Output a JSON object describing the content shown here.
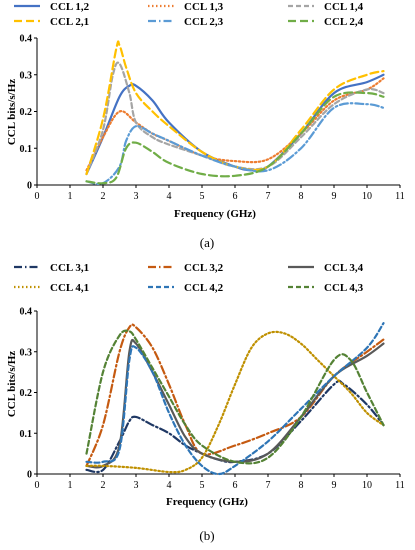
{
  "chart_data": [
    {
      "type": "line",
      "panel_label": "(a)",
      "xlabel": "Frequency (GHz)",
      "ylabel": "CCL bits/s/Hz",
      "xlim": [
        0,
        11
      ],
      "ylim": [
        0,
        0.4
      ],
      "x_ticks": [
        0,
        1,
        2,
        3,
        4,
        5,
        6,
        7,
        8,
        9,
        10,
        11
      ],
      "y_ticks": [
        0,
        0.1,
        0.2,
        0.3,
        0.4
      ],
      "y_tick_labels": [
        "0",
        "0.1",
        "0.2",
        "0.3",
        "0.4"
      ],
      "grid": false,
      "legend_position": "top",
      "series": [
        {
          "name": "CCL 1,2",
          "color": "#4472c4",
          "dash": "solid",
          "x": [
            1.5,
            2.0,
            2.5,
            2.8,
            3.0,
            3.5,
            4.0,
            5.0,
            6.0,
            6.5,
            7.0,
            8.0,
            9.0,
            10.0,
            10.5
          ],
          "y": [
            0.03,
            0.13,
            0.24,
            0.27,
            0.27,
            0.23,
            0.17,
            0.09,
            0.05,
            0.04,
            0.05,
            0.14,
            0.25,
            0.28,
            0.3
          ]
        },
        {
          "name": "CCL 1,3",
          "color": "#ed7d31",
          "dash": "dot",
          "x": [
            1.5,
            2.0,
            2.5,
            3.0,
            3.5,
            4.0,
            5.0,
            6.0,
            7.0,
            8.0,
            9.0,
            10.0,
            10.5
          ],
          "y": [
            0.04,
            0.13,
            0.2,
            0.17,
            0.14,
            0.12,
            0.08,
            0.065,
            0.07,
            0.14,
            0.23,
            0.26,
            0.29
          ]
        },
        {
          "name": "CCL 1,4",
          "color": "#a5a5a5",
          "dash": "dash",
          "x": [
            1.5,
            2.0,
            2.3,
            2.5,
            2.8,
            3.0,
            3.5,
            4.0,
            5.0,
            6.0,
            7.0,
            8.0,
            9.0,
            10.0,
            10.5
          ],
          "y": [
            0.03,
            0.15,
            0.3,
            0.33,
            0.25,
            0.17,
            0.13,
            0.11,
            0.08,
            0.05,
            0.05,
            0.13,
            0.22,
            0.26,
            0.25
          ]
        },
        {
          "name": "CCL 2,1",
          "color": "#ffc000",
          "dash": "longdash",
          "x": [
            1.5,
            2.0,
            2.4,
            2.5,
            2.7,
            3.0,
            3.5,
            4.0,
            5.0,
            6.0,
            7.0,
            8.0,
            9.0,
            10.0,
            10.5
          ],
          "y": [
            0.03,
            0.18,
            0.37,
            0.38,
            0.32,
            0.25,
            0.2,
            0.16,
            0.09,
            0.05,
            0.05,
            0.15,
            0.26,
            0.3,
            0.31
          ]
        },
        {
          "name": "CCL 2,3",
          "color": "#5b9bd5",
          "dash": "dashdot",
          "x": [
            1.5,
            2.0,
            2.5,
            2.7,
            3.0,
            3.5,
            4.0,
            5.0,
            6.0,
            7.0,
            8.0,
            9.0,
            10.0,
            10.5
          ],
          "y": [
            0.01,
            0.005,
            0.05,
            0.12,
            0.16,
            0.14,
            0.12,
            0.08,
            0.05,
            0.04,
            0.1,
            0.21,
            0.22,
            0.21
          ]
        },
        {
          "name": "CCL 2,4",
          "color": "#70ad47",
          "dash": "longdash",
          "x": [
            1.5,
            2.0,
            2.4,
            2.7,
            3.0,
            3.5,
            4.0,
            5.0,
            6.0,
            7.0,
            8.0,
            9.0,
            10.0,
            10.5
          ],
          "y": [
            0.01,
            0.005,
            0.02,
            0.1,
            0.115,
            0.09,
            0.06,
            0.03,
            0.025,
            0.05,
            0.14,
            0.24,
            0.25,
            0.24
          ]
        }
      ]
    },
    {
      "type": "line",
      "panel_label": "(b)",
      "xlabel": "Frequency (GHz)",
      "ylabel": "CCL bits/s/Hz",
      "xlim": [
        0,
        11
      ],
      "ylim": [
        0,
        0.4
      ],
      "x_ticks": [
        0,
        1,
        2,
        3,
        4,
        5,
        6,
        7,
        8,
        9,
        10,
        11
      ],
      "y_ticks": [
        0,
        0.1,
        0.2,
        0.3,
        0.4
      ],
      "y_tick_labels": [
        "0",
        "0.1",
        "0.2",
        "0.3",
        "0.4"
      ],
      "grid": false,
      "legend_position": "top",
      "series": [
        {
          "name": "CCL 3,1",
          "color": "#1f3864",
          "dash": "dashdot",
          "x": [
            1.5,
            2.0,
            2.5,
            2.8,
            3.0,
            3.5,
            4.0,
            4.5,
            5.0,
            5.5,
            6.0,
            7.0,
            8.0,
            9.0,
            9.3,
            10.0,
            10.5
          ],
          "y": [
            0.01,
            0.01,
            0.08,
            0.13,
            0.14,
            0.12,
            0.1,
            0.07,
            0.05,
            0.035,
            0.03,
            0.05,
            0.13,
            0.22,
            0.22,
            0.17,
            0.12
          ]
        },
        {
          "name": "CCL 3,2",
          "color": "#c55a11",
          "dash": "dashdot",
          "x": [
            1.5,
            2.0,
            2.5,
            2.8,
            3.0,
            3.5,
            4.0,
            4.5,
            5.0,
            6.0,
            7.0,
            8.0,
            9.0,
            10.0,
            10.5
          ],
          "y": [
            0.02,
            0.12,
            0.3,
            0.36,
            0.36,
            0.31,
            0.22,
            0.12,
            0.05,
            0.07,
            0.1,
            0.14,
            0.24,
            0.3,
            0.33
          ]
        },
        {
          "name": "CCL 3,4",
          "color": "#595959",
          "dash": "solid",
          "x": [
            1.5,
            2.0,
            2.5,
            2.8,
            3.0,
            3.5,
            4.0,
            4.5,
            5.0,
            6.0,
            7.0,
            8.0,
            9.0,
            10.0,
            10.5
          ],
          "y": [
            0.02,
            0.02,
            0.07,
            0.3,
            0.32,
            0.25,
            0.17,
            0.09,
            0.05,
            0.03,
            0.05,
            0.14,
            0.24,
            0.29,
            0.32
          ]
        },
        {
          "name": "CCL 4,1",
          "color": "#bf9000",
          "dash": "dot",
          "x": [
            1.5,
            2.0,
            3.0,
            4.0,
            4.5,
            5.0,
            5.5,
            6.0,
            6.5,
            7.0,
            7.5,
            8.0,
            8.5,
            9.0,
            9.5,
            10.0,
            10.5
          ],
          "y": [
            0.02,
            0.02,
            0.015,
            0.005,
            0.01,
            0.04,
            0.12,
            0.22,
            0.31,
            0.345,
            0.345,
            0.32,
            0.28,
            0.24,
            0.2,
            0.15,
            0.12
          ]
        },
        {
          "name": "CCL 4,2",
          "color": "#2e75b6",
          "dash": "dash",
          "x": [
            1.5,
            2.0,
            2.5,
            2.8,
            3.0,
            3.5,
            4.0,
            4.5,
            5.0,
            5.5,
            6.0,
            7.0,
            8.0,
            9.0,
            10.0,
            10.5
          ],
          "y": [
            0.03,
            0.03,
            0.06,
            0.28,
            0.31,
            0.25,
            0.15,
            0.07,
            0.02,
            0.0,
            0.02,
            0.08,
            0.16,
            0.24,
            0.31,
            0.37
          ]
        },
        {
          "name": "CCL 4,3",
          "color": "#548235",
          "dash": "dash",
          "x": [
            1.5,
            2.0,
            2.5,
            2.8,
            3.0,
            3.5,
            4.0,
            4.5,
            5.0,
            6.0,
            7.0,
            8.0,
            9.0,
            9.5,
            10.0,
            10.5
          ],
          "y": [
            0.05,
            0.25,
            0.34,
            0.35,
            0.33,
            0.26,
            0.19,
            0.12,
            0.07,
            0.03,
            0.04,
            0.14,
            0.28,
            0.28,
            0.2,
            0.12
          ]
        }
      ]
    }
  ]
}
